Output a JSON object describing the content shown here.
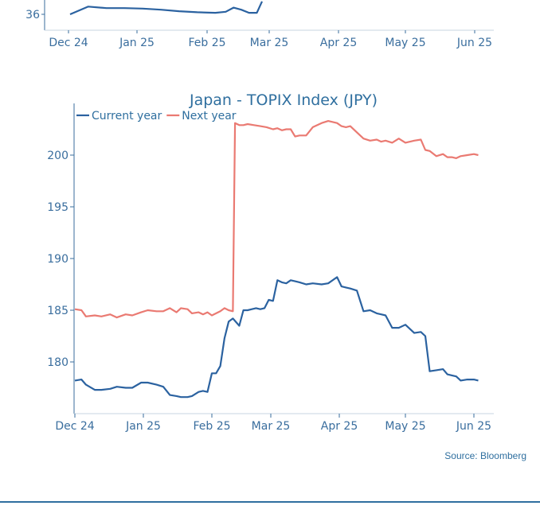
{
  "colors": {
    "current": "#2b62a0",
    "next": "#ea7a72",
    "axis": "#3a6e9e",
    "title": "#2f6f9f"
  },
  "chart_data": [
    {
      "type": "line",
      "partial": true,
      "title": "",
      "xlabel": "",
      "ylabel": "",
      "x_ticks": [
        "Dec 24",
        "Jan 25",
        "Feb 25",
        "Mar 25",
        "Apr 25",
        "May 25",
        "Jun 25"
      ],
      "y_ticks": [
        "36"
      ],
      "series": [
        {
          "color_key": "current",
          "x": [
            "2024-12-24",
            "2024-12-31",
            "2025-01-07",
            "2025-01-14",
            "2025-01-21",
            "2025-01-28",
            "2025-02-04",
            "2025-02-11",
            "2025-02-18",
            "2025-02-22",
            "2025-02-25",
            "2025-02-28",
            "2025-03-03",
            "2025-03-06",
            "2025-03-08"
          ],
          "y": [
            36.0,
            37.5,
            37.2,
            37.2,
            37.1,
            36.9,
            36.6,
            36.4,
            36.3,
            36.5,
            37.3,
            36.9,
            36.3,
            36.3,
            38.5
          ]
        }
      ]
    },
    {
      "type": "line",
      "title": "Japan - TOPIX Index (JPY)",
      "xlabel": "",
      "ylabel": "",
      "x_ticks": [
        "Dec 24",
        "Jan 25",
        "Feb 25",
        "Mar 25",
        "Apr 25",
        "May 25",
        "Jun 25"
      ],
      "y_ticks": [
        "180",
        "185",
        "190",
        "195",
        "200"
      ],
      "ylim": [
        175,
        205
      ],
      "legend_position": "top-left",
      "series": [
        {
          "name": "Current year",
          "color_key": "current",
          "x": [
            "2024-12-01",
            "2024-12-04",
            "2024-12-06",
            "2024-12-10",
            "2024-12-13",
            "2024-12-17",
            "2024-12-20",
            "2024-12-24",
            "2024-12-27",
            "2024-12-31",
            "2025-01-03",
            "2025-01-07",
            "2025-01-10",
            "2025-01-13",
            "2025-01-16",
            "2025-01-18",
            "2025-01-21",
            "2025-01-23",
            "2025-01-26",
            "2025-01-28",
            "2025-01-30",
            "2025-02-01",
            "2025-02-03",
            "2025-02-05",
            "2025-02-07",
            "2025-02-09",
            "2025-02-11",
            "2025-02-14",
            "2025-02-16",
            "2025-02-18",
            "2025-02-20",
            "2025-02-22",
            "2025-02-24",
            "2025-02-26",
            "2025-02-28",
            "2025-03-02",
            "2025-03-04",
            "2025-03-06",
            "2025-03-08",
            "2025-03-10",
            "2025-03-12",
            "2025-03-14",
            "2025-03-17",
            "2025-03-20",
            "2025-03-24",
            "2025-03-27",
            "2025-03-31",
            "2025-04-02",
            "2025-04-04",
            "2025-04-06",
            "2025-04-09",
            "2025-04-12",
            "2025-04-15",
            "2025-04-18",
            "2025-04-20",
            "2025-04-22",
            "2025-04-25",
            "2025-04-28",
            "2025-05-01",
            "2025-05-05",
            "2025-05-08",
            "2025-05-10",
            "2025-05-12",
            "2025-05-15",
            "2025-05-18",
            "2025-05-20",
            "2025-05-22",
            "2025-05-24",
            "2025-05-26",
            "2025-05-29",
            "2025-06-01",
            "2025-06-03"
          ],
          "y": [
            178.2,
            178.3,
            177.8,
            177.3,
            177.3,
            177.4,
            177.6,
            177.5,
            177.5,
            178.0,
            178.0,
            177.8,
            177.6,
            176.8,
            176.7,
            176.6,
            176.6,
            176.7,
            177.1,
            177.2,
            177.1,
            178.9,
            178.9,
            179.6,
            182.3,
            183.9,
            184.2,
            183.5,
            185.0,
            185.0,
            185.1,
            185.2,
            185.1,
            185.2,
            186.0,
            185.9,
            187.9,
            187.7,
            187.6,
            187.9,
            187.8,
            187.7,
            187.5,
            187.6,
            187.5,
            187.6,
            188.2,
            187.3,
            187.2,
            187.1,
            186.9,
            184.9,
            185.0,
            184.7,
            184.6,
            184.5,
            183.3,
            183.3,
            183.6,
            182.8,
            182.9,
            182.5,
            179.1,
            179.2,
            179.3,
            178.8,
            178.7,
            178.6,
            178.2,
            178.3,
            178.3,
            178.2
          ]
        },
        {
          "name": "Next year",
          "color_key": "next",
          "x": [
            "2024-12-01",
            "2024-12-04",
            "2024-12-06",
            "2024-12-10",
            "2024-12-13",
            "2024-12-17",
            "2024-12-20",
            "2024-12-24",
            "2024-12-27",
            "2024-12-31",
            "2025-01-03",
            "2025-01-07",
            "2025-01-10",
            "2025-01-13",
            "2025-01-16",
            "2025-01-18",
            "2025-01-21",
            "2025-01-23",
            "2025-01-26",
            "2025-01-28",
            "2025-01-30",
            "2025-02-01",
            "2025-02-03",
            "2025-02-05",
            "2025-02-07",
            "2025-02-09",
            "2025-02-11",
            "2025-02-12",
            "2025-02-14",
            "2025-02-16",
            "2025-02-18",
            "2025-02-21",
            "2025-02-24",
            "2025-02-27",
            "2025-03-02",
            "2025-03-04",
            "2025-03-06",
            "2025-03-08",
            "2025-03-10",
            "2025-03-12",
            "2025-03-14",
            "2025-03-17",
            "2025-03-20",
            "2025-03-24",
            "2025-03-27",
            "2025-03-31",
            "2025-04-02",
            "2025-04-04",
            "2025-04-06",
            "2025-04-09",
            "2025-04-12",
            "2025-04-15",
            "2025-04-18",
            "2025-04-20",
            "2025-04-22",
            "2025-04-25",
            "2025-04-28",
            "2025-05-01",
            "2025-05-05",
            "2025-05-08",
            "2025-05-10",
            "2025-05-12",
            "2025-05-15",
            "2025-05-18",
            "2025-05-20",
            "2025-05-22",
            "2025-05-24",
            "2025-05-26",
            "2025-05-29",
            "2025-06-01",
            "2025-06-03"
          ],
          "y": [
            185.1,
            185.0,
            184.4,
            184.5,
            184.4,
            184.6,
            184.3,
            184.6,
            184.5,
            184.8,
            185.0,
            184.9,
            184.9,
            185.2,
            184.8,
            185.2,
            185.1,
            184.7,
            184.8,
            184.6,
            184.8,
            184.5,
            184.7,
            184.9,
            185.2,
            185.0,
            184.9,
            203.1,
            202.9,
            202.9,
            203.0,
            202.9,
            202.8,
            202.7,
            202.5,
            202.6,
            202.4,
            202.5,
            202.5,
            201.8,
            201.9,
            201.9,
            202.7,
            203.1,
            203.3,
            203.1,
            202.8,
            202.7,
            202.8,
            202.2,
            201.6,
            201.4,
            201.5,
            201.3,
            201.4,
            201.2,
            201.6,
            201.2,
            201.4,
            201.5,
            200.5,
            200.4,
            199.9,
            200.1,
            199.8,
            199.8,
            199.7,
            199.9,
            200.0,
            200.1,
            200.0
          ]
        }
      ],
      "source": "Source: Bloomberg"
    }
  ]
}
